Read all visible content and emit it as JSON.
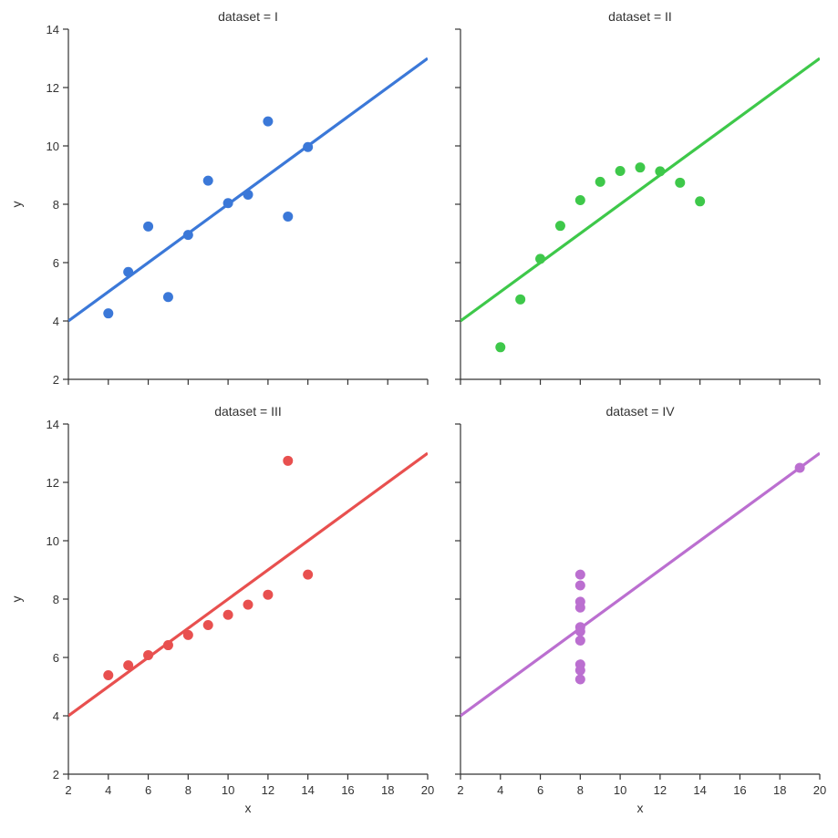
{
  "chart_data": [
    {
      "type": "scatter",
      "title": "dataset = I",
      "xlabel": "",
      "ylabel": "y",
      "xlim": [
        2,
        20
      ],
      "ylim": [
        2,
        14
      ],
      "xticks": [
        "2",
        "4",
        "6",
        "8",
        "10",
        "12",
        "14",
        "16",
        "18",
        "20"
      ],
      "yticks": [
        "2",
        "4",
        "6",
        "8",
        "10",
        "12",
        "14"
      ],
      "show_xtick_labels": false,
      "show_ytick_labels": true,
      "grid": false,
      "color": "#3b78d8",
      "x": [
        10,
        8,
        13,
        9,
        11,
        14,
        6,
        4,
        12,
        7,
        5
      ],
      "y": [
        8.04,
        6.95,
        7.58,
        8.81,
        8.33,
        9.96,
        7.24,
        4.26,
        10.84,
        4.82,
        5.68
      ],
      "fit_line": {
        "slope": 0.5,
        "intercept": 3.0
      }
    },
    {
      "type": "scatter",
      "title": "dataset = II",
      "xlabel": "",
      "ylabel": "",
      "xlim": [
        2,
        20
      ],
      "ylim": [
        2,
        14
      ],
      "xticks": [
        "2",
        "4",
        "6",
        "8",
        "10",
        "12",
        "14",
        "16",
        "18",
        "20"
      ],
      "yticks": [
        "2",
        "4",
        "6",
        "8",
        "10",
        "12",
        "14"
      ],
      "show_xtick_labels": false,
      "show_ytick_labels": false,
      "grid": false,
      "color": "#3ec84a",
      "x": [
        10,
        8,
        13,
        9,
        11,
        14,
        6,
        4,
        12,
        7,
        5
      ],
      "y": [
        9.14,
        8.14,
        8.74,
        8.77,
        9.26,
        8.1,
        6.13,
        3.1,
        9.13,
        7.26,
        4.74
      ],
      "fit_line": {
        "slope": 0.5,
        "intercept": 3.0
      }
    },
    {
      "type": "scatter",
      "title": "dataset = III",
      "xlabel": "x",
      "ylabel": "y",
      "xlim": [
        2,
        20
      ],
      "ylim": [
        2,
        14
      ],
      "xticks": [
        "2",
        "4",
        "6",
        "8",
        "10",
        "12",
        "14",
        "16",
        "18",
        "20"
      ],
      "yticks": [
        "2",
        "4",
        "6",
        "8",
        "10",
        "12",
        "14"
      ],
      "show_xtick_labels": true,
      "show_ytick_labels": true,
      "grid": false,
      "color": "#e8504f",
      "x": [
        10,
        8,
        13,
        9,
        11,
        14,
        6,
        4,
        12,
        7,
        5
      ],
      "y": [
        7.46,
        6.77,
        12.74,
        7.11,
        7.81,
        8.84,
        6.08,
        5.39,
        8.15,
        6.42,
        5.73
      ],
      "fit_line": {
        "slope": 0.5,
        "intercept": 3.0
      }
    },
    {
      "type": "scatter",
      "title": "dataset = IV",
      "xlabel": "x",
      "ylabel": "",
      "xlim": [
        2,
        20
      ],
      "ylim": [
        2,
        14
      ],
      "xticks": [
        "2",
        "4",
        "6",
        "8",
        "10",
        "12",
        "14",
        "16",
        "18",
        "20"
      ],
      "yticks": [
        "2",
        "4",
        "6",
        "8",
        "10",
        "12",
        "14"
      ],
      "show_xtick_labels": true,
      "show_ytick_labels": false,
      "grid": false,
      "color": "#bb6fd0",
      "x": [
        8,
        8,
        8,
        8,
        8,
        8,
        8,
        19,
        8,
        8,
        8
      ],
      "y": [
        6.58,
        5.76,
        7.71,
        8.84,
        8.47,
        7.04,
        5.25,
        12.5,
        5.56,
        7.91,
        6.89
      ],
      "fit_line": {
        "slope": 0.5,
        "intercept": 3.0
      }
    }
  ]
}
